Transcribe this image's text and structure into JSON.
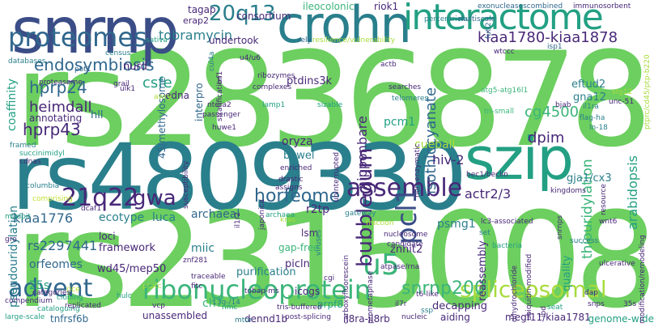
{
  "palette": {
    "green": "#6ccf5f",
    "lightgreen": "#a8db3c",
    "yellowgreen": "#bfe02d",
    "teal": "#2a7f8c",
    "tealmid": "#23a083",
    "seagreen": "#3bb57a",
    "blue": "#30678d",
    "navy": "#3b4d87",
    "purple": "#482878",
    "darkpurple": "#3d1f5e"
  },
  "words": [
    {
      "text": "rs2836878",
      "color": "green"
    },
    {
      "text": "rs4809330",
      "color": "teal"
    },
    {
      "text": "rs2315008",
      "color": "green"
    },
    {
      "text": "snrnp",
      "color": "navy"
    },
    {
      "text": "crohn",
      "color": "teal"
    },
    {
      "text": "interactome",
      "color": "tealmid"
    },
    {
      "text": "szip",
      "color": "tealmid"
    },
    {
      "text": "proteomes",
      "color": "blue"
    },
    {
      "text": "20q13",
      "color": "teal"
    },
    {
      "text": "kiaa1780-kiaa1878",
      "color": "purple"
    },
    {
      "text": "assemble",
      "color": "purple"
    },
    {
      "text": "ribonucleoprotein",
      "color": "seagreen"
    },
    {
      "text": "advent",
      "color": "blue"
    },
    {
      "text": "spliceosomal",
      "color": "lightgreen"
    },
    {
      "text": "21q22",
      "color": "purple"
    },
    {
      "text": "gwa",
      "color": "purple"
    },
    {
      "text": "horfeome",
      "color": "blue"
    },
    {
      "text": "pcl1",
      "color": "navy"
    },
    {
      "text": "u5",
      "color": "seagreen"
    },
    {
      "text": "bubblegum",
      "color": "purple"
    },
    {
      "text": "snrnp200",
      "color": "seagreen"
    },
    {
      "text": "endosymbiosis",
      "color": "blue"
    },
    {
      "text": "hprp24",
      "color": "blue"
    },
    {
      "text": "heimdall",
      "color": "purple"
    },
    {
      "text": "hprp43",
      "color": "purple"
    },
    {
      "text": "csfe",
      "color": "tealmid"
    },
    {
      "text": "dpim",
      "color": "purple"
    },
    {
      "text": "cg4500",
      "color": "seagreen"
    },
    {
      "text": "isothiocyanate",
      "color": "blue"
    },
    {
      "text": "nipponbare",
      "color": "purple"
    },
    {
      "text": "tobramycin",
      "color": "teal"
    },
    {
      "text": "actr2/3",
      "color": "purple"
    },
    {
      "text": "thiouridylation",
      "color": "seagreen"
    },
    {
      "text": "arabidopsis",
      "color": "tealmid"
    },
    {
      "text": "kiaa1776",
      "color": "blue"
    },
    {
      "text": "archaeal",
      "color": "blue"
    },
    {
      "text": "luca",
      "color": "teal"
    },
    {
      "text": "ecotype",
      "color": "teal"
    },
    {
      "text": "r2tp",
      "color": "purple"
    },
    {
      "text": "rs2297441",
      "color": "blue"
    },
    {
      "text": "orfeomes",
      "color": "blue"
    },
    {
      "text": "pseudouridylation",
      "color": "teal"
    },
    {
      "text": "hiv-2",
      "color": "purple"
    },
    {
      "text": "psmg1",
      "color": "teal"
    },
    {
      "text": "cueball",
      "color": "lightgreen"
    },
    {
      "text": "pcm1",
      "color": "tealmid"
    },
    {
      "text": "oryza",
      "color": "purple"
    },
    {
      "text": "bowel",
      "color": "teal"
    },
    {
      "text": "ptdins3k",
      "color": "purple"
    },
    {
      "text": "eftud2",
      "color": "teal"
    },
    {
      "text": "gna12",
      "color": "teal"
    },
    {
      "text": "gja1/cx3",
      "color": "teal"
    },
    {
      "text": "framework",
      "color": "purple"
    },
    {
      "text": "miic",
      "color": "teal"
    },
    {
      "text": "wd45/mep50",
      "color": "purple"
    },
    {
      "text": "ch7",
      "color": "seagreen"
    },
    {
      "text": "purification",
      "color": "teal"
    },
    {
      "text": "picln",
      "color": "purple"
    },
    {
      "text": "znhit2",
      "color": "purple"
    },
    {
      "text": "reassembly",
      "color": "purple"
    },
    {
      "text": "quality",
      "color": "tealmid"
    },
    {
      "text": "decapping",
      "color": "purple"
    },
    {
      "text": "aiding",
      "color": "purple"
    },
    {
      "text": "megf11/kiaa1781",
      "color": "purple"
    },
    {
      "text": "genome-wide",
      "color": "tealmid"
    },
    {
      "text": "unassembled",
      "color": "purple"
    },
    {
      "text": "dennd1b",
      "color": "purple"
    },
    {
      "text": "il8ra-il8rb",
      "color": "purple"
    },
    {
      "text": "tnfrsf6b",
      "color": "blue"
    },
    {
      "text": "prpf8",
      "color": "tealmid"
    },
    {
      "text": "icogs",
      "color": "purple"
    },
    {
      "text": "gap-free",
      "color": "seagreen"
    },
    {
      "text": "lsm",
      "color": "purple"
    },
    {
      "text": "loci",
      "color": "purple"
    },
    {
      "text": "25s",
      "color": "tealmid"
    },
    {
      "text": "coaffinity",
      "color": "tealmid"
    },
    {
      "text": "annotating",
      "color": "purple"
    },
    {
      "text": "hll",
      "color": "blue"
    },
    {
      "text": "45/methylosome",
      "color": "blue"
    },
    {
      "text": "nurd",
      "color": "purple"
    },
    {
      "text": "edna",
      "color": "purple"
    },
    {
      "text": "interpro",
      "color": "blue"
    },
    {
      "text": "undertook",
      "color": "purple"
    },
    {
      "text": "consortium",
      "color": "purple"
    },
    {
      "text": "ileocolonic",
      "color": "seagreen"
    },
    {
      "text": "riok1",
      "color": "purple"
    },
    {
      "text": "tagap",
      "color": "purple"
    },
    {
      "text": "erap2",
      "color": "purple"
    },
    {
      "text": "exonucleasescombined",
      "color": "blue"
    },
    {
      "text": "immunosorbent",
      "color": "purple"
    },
    {
      "text": "multiscale",
      "color": "blue"
    },
    {
      "text": "futi2",
      "color": "blue"
    },
    {
      "text": "wtccc",
      "color": "purple"
    },
    {
      "text": "isp1",
      "color": "blue"
    },
    {
      "text": "actb",
      "color": "purple"
    },
    {
      "text": "pot1",
      "color": "blue"
    },
    {
      "text": "census",
      "color": "teal"
    },
    {
      "text": "databases",
      "color": "teal"
    },
    {
      "text": "sativa",
      "color": "tealmid"
    },
    {
      "text": "resilience/vulnerability",
      "color": "lightgreen"
    },
    {
      "text": "rely",
      "color": "blue"
    },
    {
      "text": "proteasome",
      "color": "purple"
    },
    {
      "text": "grail",
      "color": "purple"
    },
    {
      "text": "ribozymes",
      "color": "purple"
    },
    {
      "text": "complexes",
      "color": "purple"
    },
    {
      "text": "searches",
      "color": "purple"
    },
    {
      "text": "telomeres",
      "color": "teal"
    },
    {
      "text": "atg5-atg16l1",
      "color": "seagreen"
    },
    {
      "text": "tri-small",
      "color": "seagreen"
    },
    {
      "text": "bjab",
      "color": "purple"
    },
    {
      "text": "stg12",
      "color": "lightgreen"
    },
    {
      "text": "il1ra",
      "color": "teal"
    },
    {
      "text": "flag-ha",
      "color": "teal"
    },
    {
      "text": "ln-18",
      "color": "teal"
    },
    {
      "text": "ulk1",
      "color": "purple"
    },
    {
      "text": "stratification",
      "color": "purple"
    },
    {
      "text": "awry",
      "color": "lightgreen"
    },
    {
      "text": "lamp1",
      "color": "tealmid"
    },
    {
      "text": "sizable",
      "color": "tealmid"
    },
    {
      "text": "ntera2",
      "color": "purple"
    },
    {
      "text": "passenger",
      "color": "purple"
    },
    {
      "text": "huwe1",
      "color": "purple"
    },
    {
      "text": "cdnas",
      "color": "purple"
    },
    {
      "text": "succinimidyl",
      "color": "tealmid"
    },
    {
      "text": "enriched",
      "color": "purple"
    },
    {
      "text": "drastic",
      "color": "purple"
    },
    {
      "text": "assigns",
      "color": "purple"
    },
    {
      "text": "bec1/beclin",
      "color": "purple"
    },
    {
      "text": "kingdoms",
      "color": "purple"
    },
    {
      "text": "columbia",
      "color": "teal"
    },
    {
      "text": "comprising",
      "color": "yellowgreen"
    },
    {
      "text": "dcaf1",
      "color": "purple"
    },
    {
      "text": "gateway",
      "color": "teal"
    },
    {
      "text": "fraction",
      "color": "lightgreen"
    },
    {
      "text": "nucleosome",
      "color": "purple"
    },
    {
      "text": "candidate",
      "color": "purple"
    },
    {
      "text": "lc3-associated",
      "color": "purple"
    },
    {
      "text": "bacteria",
      "color": "tealmid"
    },
    {
      "text": "set",
      "color": "teal"
    },
    {
      "text": "success",
      "color": "teal"
    },
    {
      "text": "ulcerative",
      "color": "purple"
    },
    {
      "text": "wnt6",
      "color": "purple"
    },
    {
      "text": "gro",
      "color": "purple"
    },
    {
      "text": "mudpit",
      "color": "tealmid"
    },
    {
      "text": "categories",
      "color": "purple"
    },
    {
      "text": "atpase/rna",
      "color": "purple"
    },
    {
      "text": "znf281",
      "color": "purple"
    },
    {
      "text": "traceable",
      "color": "purple"
    },
    {
      "text": "fitc",
      "color": "purple"
    },
    {
      "text": "tobap-ms",
      "color": "purple"
    },
    {
      "text": "vcp",
      "color": "purple"
    },
    {
      "text": "hulc",
      "color": "tealmid"
    },
    {
      "text": "cloning",
      "color": "tealmid"
    },
    {
      "text": "cataloguing",
      "color": "tealmid"
    },
    {
      "text": "compendium",
      "color": "purple"
    },
    {
      "text": "replicated",
      "color": "purple"
    },
    {
      "text": "large-scale",
      "color": "tealmid"
    },
    {
      "text": "cgi",
      "color": "purple"
    },
    {
      "text": "tris-buffered",
      "color": "purple"
    },
    {
      "text": "il7r",
      "color": "purple"
    },
    {
      "text": "nucleic",
      "color": "purple"
    },
    {
      "text": "post-splicing",
      "color": "purple"
    },
    {
      "text": "t6-like",
      "color": "purple"
    },
    {
      "text": "dap",
      "color": "purple"
    },
    {
      "text": "snps",
      "color": "purple"
    },
    {
      "text": "35s",
      "color": "purple"
    },
    {
      "text": "modification/remodeling",
      "color": "purple"
    },
    {
      "text": "ptprc/cd45/ptp-b220",
      "color": "lightgreen"
    },
    {
      "text": "carboxyfluorescein",
      "color": "purple"
    },
    {
      "text": "prometaphase",
      "color": "purple"
    },
    {
      "text": "dihydrochloride",
      "color": "purple"
    },
    {
      "text": "ubiquitin-modified",
      "color": "purple"
    },
    {
      "text": "ibd",
      "color": "purple"
    },
    {
      "text": "snrnps",
      "color": "purple"
    },
    {
      "text": "resource",
      "color": "purple"
    },
    {
      "text": "japonica",
      "color": "purple"
    },
    {
      "text": "non-enzymatic",
      "color": "purple"
    },
    {
      "text": "uninterrupted",
      "color": "purple"
    },
    {
      "text": "viruses",
      "color": "teal"
    },
    {
      "text": "il1r2",
      "color": "purple"
    },
    {
      "text": "susceptibility",
      "color": "purple"
    },
    {
      "text": "u4/u6",
      "color": "purple"
    },
    {
      "text": "cul4a",
      "color": "teal"
    },
    {
      "text": "trf1",
      "color": "purple"
    },
    {
      "text": "unc-51",
      "color": "purple"
    },
    {
      "text": "framed",
      "color": "teal"
    },
    {
      "text": "13q-/14",
      "color": "teal"
    },
    {
      "text": "percentriolar",
      "color": "teal"
    },
    {
      "text": "pratc",
      "color": "lightgreen"
    },
    {
      "text": "archaea",
      "color": "tealmid"
    },
    {
      "text": "kras",
      "color": "lightgreen"
    },
    {
      "text": "rice",
      "color": "yellowgreen"
    },
    {
      "text": "nmc",
      "color": "tealmid"
    },
    {
      "text": "ssp",
      "color": "teal"
    },
    {
      "text": "seat",
      "color": "tealmid"
    },
    {
      "text": "mtor",
      "color": "teal"
    },
    {
      "text": "lupus",
      "color": "lightgreen"
    },
    {
      "text": "snrna",
      "color": "lightgreen"
    }
  ]
}
